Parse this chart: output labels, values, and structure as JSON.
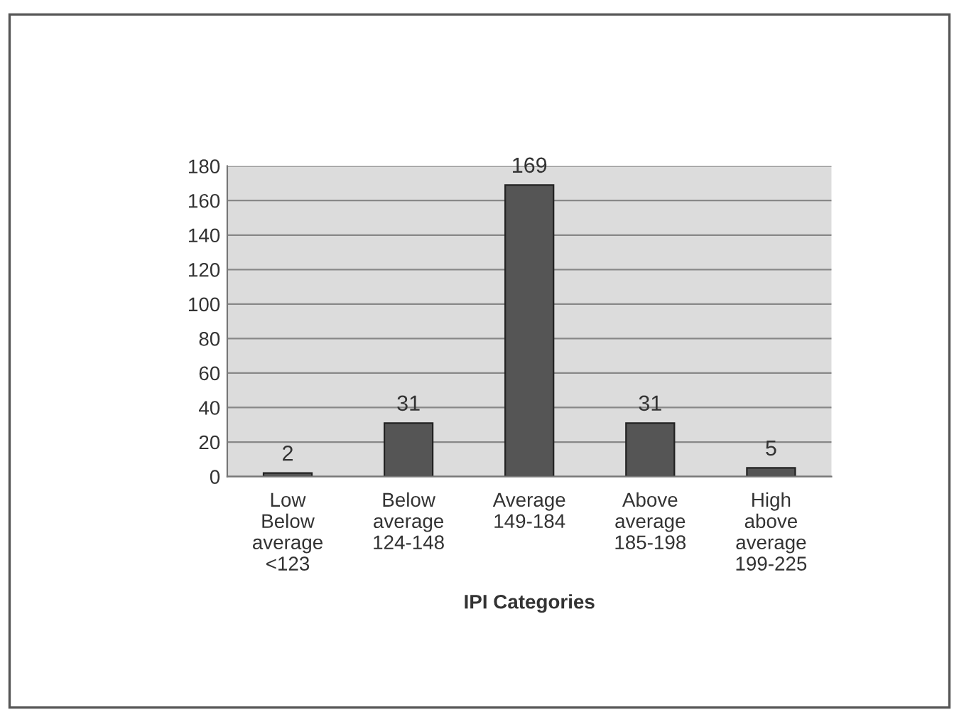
{
  "chart_data": {
    "type": "bar",
    "xlabel": "IPI Categories",
    "categories": [
      "Low\nBelow\naverage\n<123",
      "Below\naverage\n124-148",
      "Average\n149-184",
      "Above\naverage\n185-198",
      "High\nabove\naverage\n199-225"
    ],
    "values": [
      2,
      31,
      169,
      31,
      5
    ],
    "color": "#555555",
    "ylim": [
      0,
      180
    ],
    "yticks": [
      0,
      20,
      40,
      60,
      80,
      100,
      120,
      140,
      160,
      180
    ],
    "grid": "y",
    "data_labels": true
  }
}
